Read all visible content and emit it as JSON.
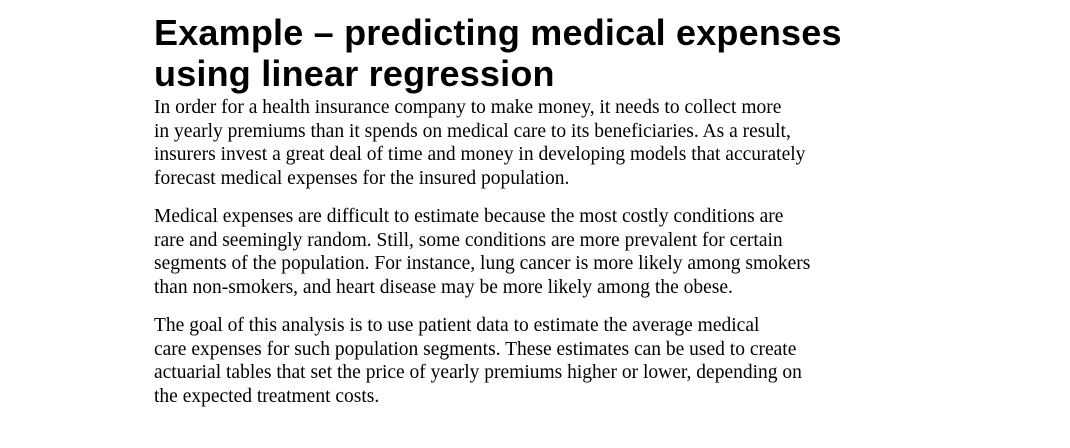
{
  "heading": {
    "line1": "Example – predicting medical expenses",
    "line2": "using linear regression"
  },
  "paragraphs": [
    [
      "In order for a health insurance company to make money, it needs to collect more",
      "in yearly premiums than it spends on medical care to its beneficiaries. As a result,",
      "insurers invest a great deal of time and money in developing models that accurately",
      "forecast medical expenses for the insured population."
    ],
    [
      "Medical expenses are difficult to estimate because the most costly conditions are",
      "rare and seemingly random. Still, some conditions are more prevalent for certain",
      "segments of the population. For instance, lung cancer is more likely among smokers",
      "than non-smokers, and heart disease may be more likely among the obese."
    ],
    [
      "The goal of this analysis is to use patient data to estimate the average medical",
      "care expenses for such population segments. These estimates can be used to create",
      "actuarial tables that set the price of yearly premiums higher or lower, depending on",
      "the expected treatment costs."
    ]
  ]
}
